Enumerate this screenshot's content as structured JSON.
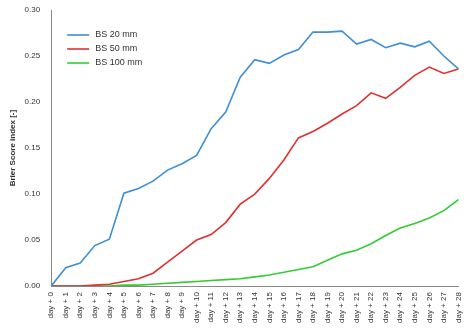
{
  "chart_data": {
    "type": "line",
    "y_label": "Brier Score index [-]",
    "categories": [
      "day + 0",
      "day + 1",
      "day + 2",
      "day + 3",
      "day + 4",
      "day + 5",
      "day + 6",
      "day + 7",
      "day + 8",
      "day + 9",
      "day + 10",
      "day + 11",
      "day + 12",
      "day + 13",
      "day + 14",
      "day + 15",
      "day + 16",
      "day + 17",
      "day + 18",
      "day + 19",
      "day + 20",
      "day + 21",
      "day + 22",
      "day + 23",
      "day + 24",
      "day + 25",
      "day + 26",
      "day + 27",
      "day + 28"
    ],
    "series": [
      {
        "name": "BS 20 mm",
        "color": "#3d8fd6",
        "values": [
          0.0,
          0.02,
          0.025,
          0.044,
          0.051,
          0.101,
          0.106,
          0.114,
          0.126,
          0.133,
          0.142,
          0.171,
          0.189,
          0.227,
          0.246,
          0.242,
          0.251,
          0.257,
          0.276,
          0.276,
          0.277,
          0.263,
          0.268,
          0.259,
          0.264,
          0.26,
          0.266,
          0.25,
          0.236
        ]
      },
      {
        "name": "BS 50 mm",
        "color": "#e03030",
        "values": [
          0.0,
          0.0,
          0.0,
          0.001,
          0.002,
          0.005,
          0.008,
          0.014,
          0.026,
          0.038,
          0.05,
          0.056,
          0.069,
          0.089,
          0.1,
          0.117,
          0.137,
          0.161,
          0.168,
          0.177,
          0.187,
          0.196,
          0.21,
          0.204,
          0.216,
          0.229,
          0.238,
          0.231,
          0.236
        ]
      },
      {
        "name": "BS 100 mm",
        "color": "#33cc33",
        "values": [
          0.0,
          0.0,
          0.0,
          0.0,
          0.0,
          0.001,
          0.001,
          0.002,
          0.003,
          0.004,
          0.005,
          0.006,
          0.007,
          0.008,
          0.01,
          0.012,
          0.015,
          0.018,
          0.021,
          0.028,
          0.035,
          0.039,
          0.046,
          0.055,
          0.063,
          0.068,
          0.074,
          0.082,
          0.094
        ]
      }
    ],
    "ylim": [
      0,
      0.3
    ],
    "yticks": [
      {
        "value": 0,
        "label": "0.00"
      },
      {
        "value": 0.05,
        "label": "0.05"
      },
      {
        "value": 0.1,
        "label": "0.10"
      },
      {
        "value": 0.15,
        "label": "0.15"
      },
      {
        "value": 0.2,
        "label": "0.20"
      },
      {
        "value": 0.25,
        "label": "0.25"
      },
      {
        "value": 0.3,
        "label": "0.30"
      }
    ],
    "grid": false,
    "legend": "upper left",
    "marker": "none"
  }
}
